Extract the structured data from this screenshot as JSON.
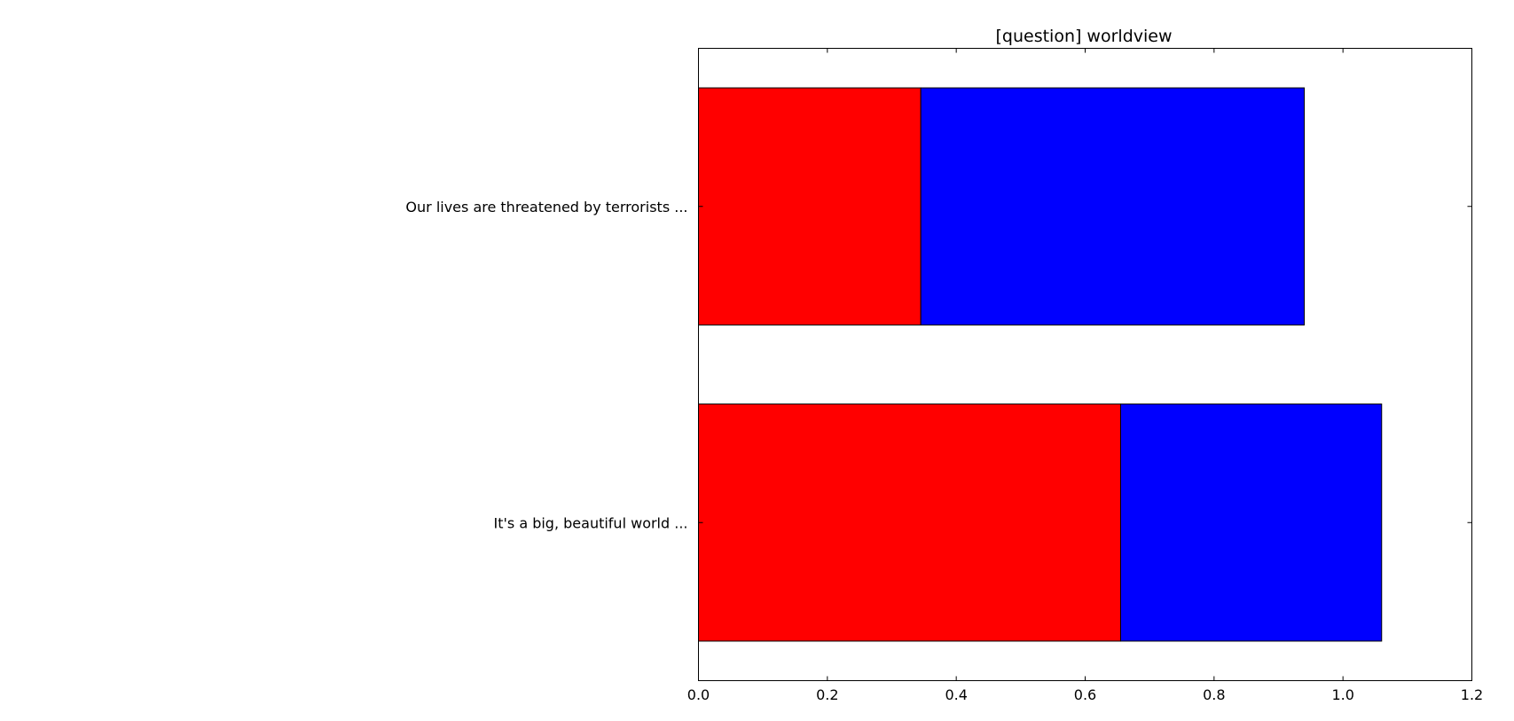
{
  "chart_data": {
    "type": "bar",
    "orientation": "horizontal",
    "stacked": true,
    "title": "[question] worldview",
    "xlabel": "",
    "ylabel": "",
    "xlim": [
      0,
      1.2
    ],
    "x_ticks": [
      "0.0",
      "0.2",
      "0.4",
      "0.6",
      "0.8",
      "1.0",
      "1.2"
    ],
    "categories": [
      "Our lives are threatened by terrorists ...",
      "It's a big, beautiful world ..."
    ],
    "series": [
      {
        "color": "#ff0000",
        "values": [
          0.345,
          0.655
        ]
      },
      {
        "color": "#0000ff",
        "values": [
          0.595,
          0.405
        ]
      }
    ],
    "grid": false,
    "legend": "none"
  }
}
